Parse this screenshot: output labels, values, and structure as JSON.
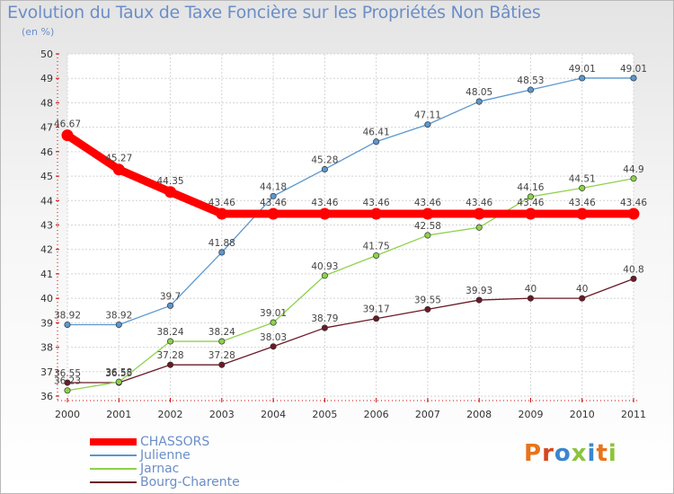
{
  "chart_data": {
    "type": "line",
    "title": "Evolution du Taux de Taxe Foncière sur les Propriétés Non Bâties",
    "ylabel": "(en %)",
    "xlabel": "",
    "ylim": [
      36,
      50
    ],
    "y_ticks": [
      36,
      37,
      38,
      39,
      40,
      41,
      42,
      43,
      44,
      45,
      46,
      47,
      48,
      49,
      50
    ],
    "x": [
      "2000",
      "2001",
      "2002",
      "2003",
      "2004",
      "2005",
      "2006",
      "2007",
      "2008",
      "2009",
      "2010",
      "2011"
    ],
    "series": [
      {
        "name": "Bourg-Charente",
        "color": "#6b1a26",
        "values": [
          36.55,
          36.55,
          37.28,
          37.28,
          38.03,
          38.79,
          39.17,
          39.55,
          39.93,
          40,
          40,
          40.8
        ],
        "labels": [
          "36.55",
          "36.55",
          "37.28",
          "37.28",
          "38.03",
          "38.79",
          "39.17",
          "39.55",
          "39.93",
          "40",
          "40",
          "40.8"
        ]
      },
      {
        "name": "Jarnac",
        "color": "#8dd24a",
        "values": [
          36.23,
          36.58,
          38.24,
          38.24,
          39.01,
          40.93,
          41.75,
          42.58,
          42.9,
          44.16,
          44.51,
          44.9
        ],
        "labels": [
          "36.23",
          "36.58",
          "38.24",
          "38.24",
          "39.01",
          "40.93",
          "41.75",
          "42.58",
          "",
          "44.16",
          "44.51",
          "44.9"
        ]
      },
      {
        "name": "Julienne",
        "color": "#5b97cf",
        "values": [
          38.92,
          38.92,
          39.7,
          41.88,
          44.18,
          45.28,
          46.41,
          47.11,
          48.05,
          48.53,
          49.01,
          49.01
        ],
        "labels": [
          "38.92",
          "38.92",
          "39.7",
          "41.88",
          "44.18",
          "45.28",
          "46.41",
          "47.11",
          "48.05",
          "48.53",
          "49.01",
          "49.01"
        ]
      },
      {
        "name": "CHASSORS",
        "color": "#ff0000",
        "values": [
          46.67,
          45.27,
          44.35,
          43.46,
          43.46,
          43.46,
          43.46,
          43.46,
          43.46,
          43.46,
          43.46,
          43.46
        ],
        "labels": [
          "46.67",
          "45.27",
          "44.35",
          "43.46",
          "43.46",
          "43.46",
          "43.46",
          "43.46",
          "43.46",
          "43.46",
          "43.46",
          "43.46"
        ]
      }
    ],
    "legend": [
      "CHASSORS",
      "Julienne",
      "Jarnac",
      "Bourg-Charente"
    ],
    "grid": true
  },
  "logo": {
    "text": "Proxiti"
  }
}
